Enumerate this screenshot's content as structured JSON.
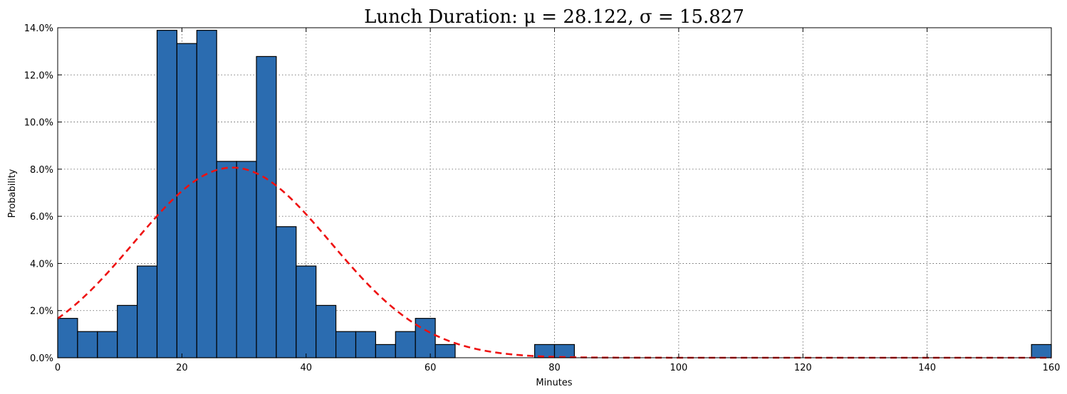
{
  "chart_data": {
    "type": "bar",
    "title": "Lunch Duration: μ = 28.122, σ = 15.827",
    "xlabel": "Minutes",
    "ylabel": "Probability",
    "xlim": [
      0,
      160
    ],
    "ylim": [
      0,
      14
    ],
    "x_ticks": [
      0,
      20,
      40,
      60,
      80,
      100,
      120,
      140,
      160
    ],
    "y_ticks": [
      0,
      2,
      4,
      6,
      8,
      10,
      12,
      14
    ],
    "y_tick_labels": [
      "0.0%",
      "2.0%",
      "4.0%",
      "6.0%",
      "8.0%",
      "10.0%",
      "12.0%",
      "14.0%"
    ],
    "grid": true,
    "bin_width": 3.2,
    "bin_starts": [
      0,
      3.2,
      6.4,
      9.6,
      12.8,
      16,
      19.2,
      22.4,
      25.6,
      28.8,
      32,
      35.2,
      38.4,
      41.6,
      44.8,
      48,
      51.2,
      54.4,
      57.6,
      60.8,
      64,
      67.2,
      70.4,
      73.6,
      76.8,
      80,
      83.2,
      86.4,
      89.6,
      92.8,
      96,
      99.2,
      102.4,
      105.6,
      108.8,
      112,
      115.2,
      118.4,
      121.6,
      124.8,
      128,
      131.2,
      134.4,
      137.6,
      140.8,
      144,
      147.2,
      150.4,
      153.6,
      156.8
    ],
    "values": [
      1.67,
      1.11,
      1.11,
      2.22,
      3.89,
      13.89,
      13.33,
      13.89,
      8.33,
      8.33,
      12.78,
      5.56,
      3.89,
      2.22,
      1.11,
      1.11,
      0.56,
      1.11,
      1.67,
      0.56,
      0,
      0,
      0,
      0,
      0.56,
      0.56,
      0,
      0,
      0,
      0,
      0,
      0,
      0,
      0,
      0,
      0,
      0,
      0,
      0,
      0,
      0,
      0,
      0,
      0,
      0,
      0,
      0,
      0,
      0,
      0.56
    ],
    "bar_color": "#2b6cb0",
    "fit_curve": {
      "type": "normal",
      "mu": 28.122,
      "sigma": 15.827,
      "color": "#ee1111",
      "style": "dashed"
    }
  }
}
